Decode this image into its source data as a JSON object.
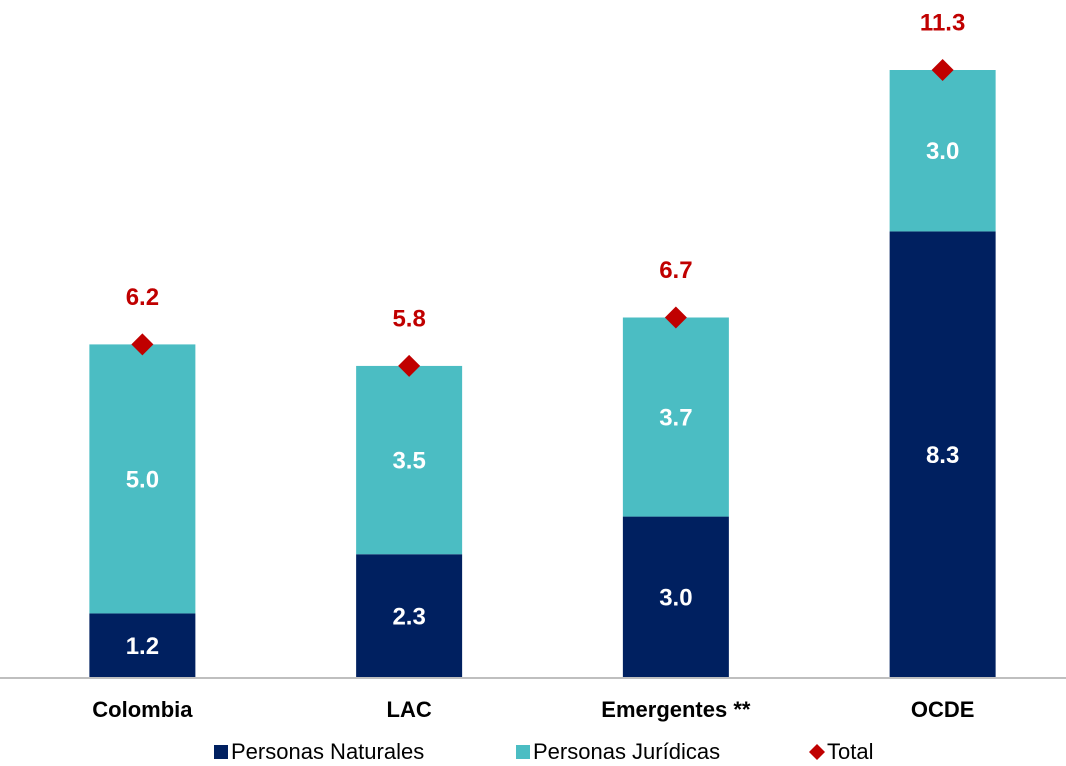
{
  "chart_data": {
    "type": "stacked_bar",
    "categories": [
      "Colombia",
      "LAC",
      "Emergentes **",
      "OCDE"
    ],
    "series": [
      {
        "name": "Personas Naturales",
        "color": "#002060",
        "values": [
          1.2,
          2.3,
          3.0,
          8.3
        ],
        "value_labels": [
          "1.2",
          "2.3",
          "3.0",
          "8.3"
        ]
      },
      {
        "name": "Personas Jurídicas",
        "color": "#4bbdc3",
        "values": [
          5.0,
          3.5,
          3.7,
          3.0
        ],
        "value_labels": [
          "5.0",
          "3.5",
          "3.7",
          "3.0"
        ]
      },
      {
        "name": "Total",
        "color": "#c00000",
        "marker": "diamond",
        "values": [
          6.2,
          5.8,
          6.7,
          11.3
        ]
      }
    ],
    "legend": "bottom"
  }
}
